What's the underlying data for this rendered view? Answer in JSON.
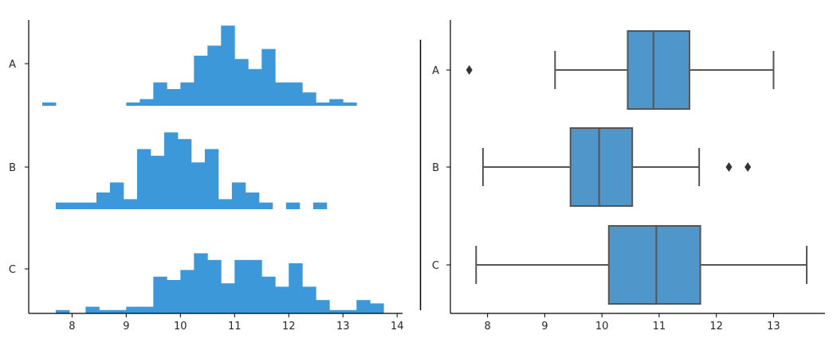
{
  "chart_data": [
    {
      "type": "histogram",
      "panel": "left",
      "title": "",
      "xlabel": "",
      "ylabel": "",
      "xlim": [
        7.2,
        14.1
      ],
      "xticks": [
        8,
        9,
        10,
        11,
        12,
        13,
        14
      ],
      "categories": [
        "A",
        "B",
        "C"
      ],
      "bin_width": 0.25,
      "color": "#3d98da",
      "series": [
        {
          "name": "A",
          "bins": [
            {
              "start": 7.45,
              "end": 7.7,
              "height": 1
            },
            {
              "start": 9.0,
              "end": 9.25,
              "height": 1
            },
            {
              "start": 9.25,
              "end": 9.5,
              "height": 2
            },
            {
              "start": 9.5,
              "end": 9.75,
              "height": 7
            },
            {
              "start": 9.75,
              "end": 10.0,
              "height": 5
            },
            {
              "start": 10.0,
              "end": 10.25,
              "height": 7
            },
            {
              "start": 10.25,
              "end": 10.5,
              "height": 15
            },
            {
              "start": 10.5,
              "end": 10.75,
              "height": 18
            },
            {
              "start": 10.75,
              "end": 11.0,
              "height": 24
            },
            {
              "start": 11.0,
              "end": 11.25,
              "height": 14
            },
            {
              "start": 11.25,
              "end": 11.5,
              "height": 11
            },
            {
              "start": 11.5,
              "end": 11.75,
              "height": 17
            },
            {
              "start": 11.75,
              "end": 12.0,
              "height": 7
            },
            {
              "start": 12.0,
              "end": 12.25,
              "height": 7
            },
            {
              "start": 12.25,
              "end": 12.5,
              "height": 4
            },
            {
              "start": 12.5,
              "end": 12.75,
              "height": 1
            },
            {
              "start": 12.75,
              "end": 13.0,
              "height": 2
            },
            {
              "start": 13.0,
              "end": 13.25,
              "height": 1
            }
          ]
        },
        {
          "name": "B",
          "bins": [
            {
              "start": 7.7,
              "end": 7.95,
              "height": 2
            },
            {
              "start": 7.95,
              "end": 8.2,
              "height": 2
            },
            {
              "start": 8.2,
              "end": 8.45,
              "height": 2
            },
            {
              "start": 8.45,
              "end": 8.7,
              "height": 5
            },
            {
              "start": 8.7,
              "end": 8.95,
              "height": 8
            },
            {
              "start": 8.95,
              "end": 9.2,
              "height": 3
            },
            {
              "start": 9.2,
              "end": 9.45,
              "height": 18
            },
            {
              "start": 9.45,
              "end": 9.7,
              "height": 16
            },
            {
              "start": 9.7,
              "end": 9.95,
              "height": 23
            },
            {
              "start": 9.95,
              "end": 10.2,
              "height": 21
            },
            {
              "start": 10.2,
              "end": 10.45,
              "height": 14
            },
            {
              "start": 10.45,
              "end": 10.7,
              "height": 18
            },
            {
              "start": 10.7,
              "end": 10.95,
              "height": 3
            },
            {
              "start": 10.95,
              "end": 11.2,
              "height": 8
            },
            {
              "start": 11.2,
              "end": 11.45,
              "height": 5
            },
            {
              "start": 11.45,
              "end": 11.7,
              "height": 2
            },
            {
              "start": 11.95,
              "end": 12.2,
              "height": 2
            },
            {
              "start": 12.45,
              "end": 12.7,
              "height": 2
            }
          ]
        },
        {
          "name": "C",
          "bins": [
            {
              "start": 7.7,
              "end": 7.95,
              "height": 1
            },
            {
              "start": 8.25,
              "end": 8.5,
              "height": 2
            },
            {
              "start": 8.5,
              "end": 8.75,
              "height": 1
            },
            {
              "start": 8.75,
              "end": 9.0,
              "height": 1
            },
            {
              "start": 9.0,
              "end": 9.25,
              "height": 2
            },
            {
              "start": 9.25,
              "end": 9.5,
              "height": 2
            },
            {
              "start": 9.5,
              "end": 9.75,
              "height": 11
            },
            {
              "start": 9.75,
              "end": 10.0,
              "height": 10
            },
            {
              "start": 10.0,
              "end": 10.25,
              "height": 13
            },
            {
              "start": 10.25,
              "end": 10.5,
              "height": 18
            },
            {
              "start": 10.5,
              "end": 10.75,
              "height": 16
            },
            {
              "start": 10.75,
              "end": 11.0,
              "height": 9
            },
            {
              "start": 11.0,
              "end": 11.25,
              "height": 16
            },
            {
              "start": 11.25,
              "end": 11.5,
              "height": 16
            },
            {
              "start": 11.5,
              "end": 11.75,
              "height": 11
            },
            {
              "start": 11.75,
              "end": 12.0,
              "height": 8
            },
            {
              "start": 12.0,
              "end": 12.25,
              "height": 15
            },
            {
              "start": 12.25,
              "end": 12.5,
              "height": 8
            },
            {
              "start": 12.5,
              "end": 12.75,
              "height": 4
            },
            {
              "start": 12.75,
              "end": 13.0,
              "height": 1
            },
            {
              "start": 13.0,
              "end": 13.25,
              "height": 1
            },
            {
              "start": 13.25,
              "end": 13.5,
              "height": 4
            },
            {
              "start": 13.5,
              "end": 13.75,
              "height": 3
            }
          ]
        }
      ]
    },
    {
      "type": "boxplot",
      "panel": "right",
      "title": "",
      "xlabel": "",
      "ylabel": "",
      "xlim": [
        7.35,
        13.9
      ],
      "xticks": [
        8,
        9,
        10,
        11,
        12,
        13
      ],
      "categories": [
        "A",
        "B",
        "C"
      ],
      "color": "#4f96cb",
      "line_color": "#555555",
      "series": [
        {
          "name": "A",
          "whisker_low": 9.18,
          "q1": 10.45,
          "median": 10.9,
          "q3": 11.53,
          "whisker_high": 13.0,
          "outliers": [
            7.68
          ]
        },
        {
          "name": "B",
          "whisker_low": 7.92,
          "q1": 9.45,
          "median": 9.95,
          "q3": 10.53,
          "whisker_high": 11.7,
          "outliers": [
            12.22,
            12.55
          ]
        },
        {
          "name": "C",
          "whisker_low": 7.8,
          "q1": 10.12,
          "median": 10.95,
          "q3": 11.72,
          "whisker_high": 13.58,
          "outliers": []
        }
      ]
    }
  ]
}
